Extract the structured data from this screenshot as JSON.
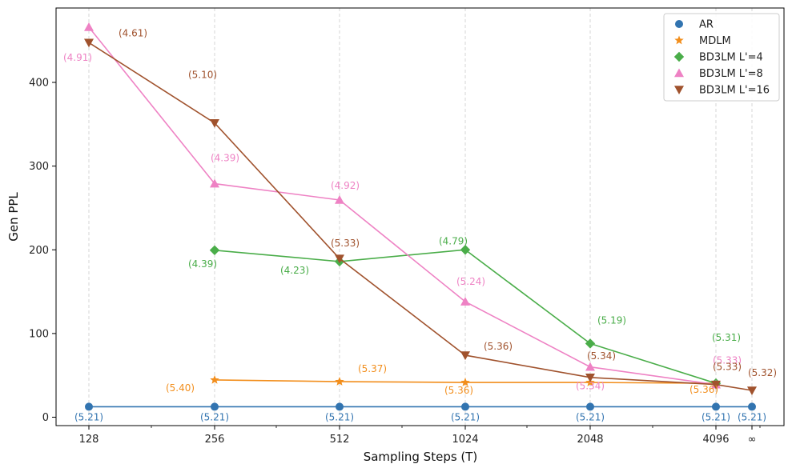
{
  "chart_data": {
    "type": "line",
    "title": "",
    "xlabel": "Sampling Steps (T)",
    "ylabel": "Gen PPL",
    "x_scale": "log2",
    "x_ticks": [
      "128",
      "256",
      "512",
      "1024",
      "2048",
      "4096",
      "∞"
    ],
    "y_ticks": [
      0,
      100,
      200,
      300,
      400
    ],
    "ylim": [
      -10,
      488
    ],
    "legend_position": "top-right",
    "series": [
      {
        "name": "AR",
        "color": "#3274b0",
        "marker": "circle",
        "points": [
          {
            "x": "128",
            "y": 12.5,
            "label": "(5.21)"
          },
          {
            "x": "256",
            "y": 12.5,
            "label": "(5.21)"
          },
          {
            "x": "512",
            "y": 12.5,
            "label": "(5.21)"
          },
          {
            "x": "1024",
            "y": 12.5,
            "label": "(5.21)"
          },
          {
            "x": "2048",
            "y": 12.5,
            "label": "(5.21)"
          },
          {
            "x": "4096",
            "y": 12.5,
            "label": "(5.21)"
          },
          {
            "x": "∞",
            "y": 12.5,
            "label": "(5.21)"
          }
        ]
      },
      {
        "name": "MDLM",
        "color": "#f28e1c",
        "marker": "star",
        "points": [
          {
            "x": "256",
            "y": 44.5,
            "label": "(5.40)"
          },
          {
            "x": "512",
            "y": 42.5,
            "label": "(5.37)"
          },
          {
            "x": "1024",
            "y": 41.5,
            "label": "(5.36)"
          },
          {
            "x": "2048",
            "y": 41.5,
            "label": ""
          },
          {
            "x": "4096",
            "y": 40.5,
            "label": "(5.36)"
          }
        ]
      },
      {
        "name": "BD3LM L'=4",
        "color": "#4aad49",
        "marker": "diamond",
        "points": [
          {
            "x": "256",
            "y": 199.5,
            "label": "(4.39)"
          },
          {
            "x": "512",
            "y": 186,
            "label": "(4.23)"
          },
          {
            "x": "1024",
            "y": 200,
            "label": "(4.79)"
          },
          {
            "x": "2048",
            "y": 88,
            "label": "(5.19)"
          },
          {
            "x": "4096",
            "y": 40.5,
            "label": "(5.31)"
          }
        ]
      },
      {
        "name": "BD3LM L'=8",
        "color": "#ee82c4",
        "marker": "triangle-up",
        "points": [
          {
            "x": "128",
            "y": 466,
            "label": "(4.91)"
          },
          {
            "x": "256",
            "y": 279,
            "label": "(4.39)"
          },
          {
            "x": "512",
            "y": 259.5,
            "label": "(4.92)"
          },
          {
            "x": "1024",
            "y": 138,
            "label": "(5.24)"
          },
          {
            "x": "2048",
            "y": 60,
            "label": "(5.34)"
          },
          {
            "x": "4096",
            "y": 39,
            "label": "(5.33)"
          }
        ]
      },
      {
        "name": "BD3LM L'=16",
        "color": "#a0522d",
        "marker": "triangle-down",
        "points": [
          {
            "x": "128",
            "y": 447.5,
            "label": "(4.61)"
          },
          {
            "x": "256",
            "y": 351.5,
            "label": "(5.10)"
          },
          {
            "x": "512",
            "y": 189.5,
            "label": "(5.33)"
          },
          {
            "x": "1024",
            "y": 74,
            "label": "(5.36)"
          },
          {
            "x": "2048",
            "y": 47.5,
            "label": "(5.34)"
          },
          {
            "x": "4096",
            "y": 39,
            "label": "(5.33)"
          },
          {
            "x": "∞",
            "y": 32,
            "label": "(5.32)"
          }
        ]
      }
    ]
  }
}
